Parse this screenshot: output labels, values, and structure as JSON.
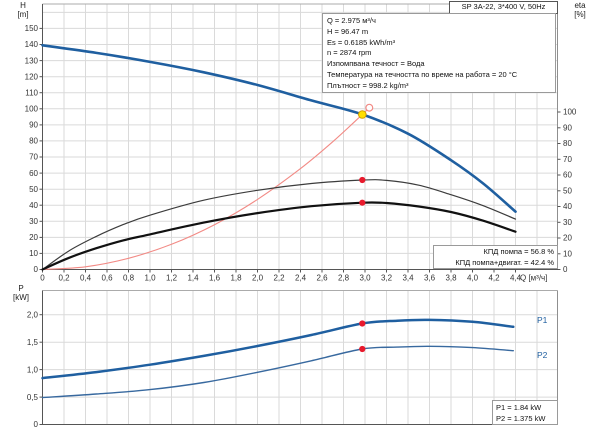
{
  "header": {
    "model_box": "SP 3A-22, 3*400 V, 50Hz"
  },
  "top_chart": {
    "left_axis": {
      "title": "H",
      "unit": "[m]"
    },
    "right_axis": {
      "title": "eta",
      "unit": "[%]"
    },
    "info_lines": [
      "Q = 2.975 м³/ч",
      "H = 96.47 m",
      "Es = 0.6185 kWh/m³",
      "n = 2874 rpm",
      "Изпомпвана течност = Вода",
      "Температура на течността по време на работа = 20 °C",
      "Плътност = 998.2 kg/m³"
    ],
    "efficiency_box": [
      "КПД помпа = 56.8 %",
      "КПД помпа+двигат. = 42.4 %"
    ]
  },
  "bottom_chart": {
    "left_axis": {
      "title": "P",
      "unit": "[kW]"
    },
    "curve_labels": [
      "P1",
      "P2"
    ],
    "value_box": [
      "P1 = 1.84 kW",
      "P2 = 1.375 kW"
    ]
  },
  "chart_data": [
    {
      "id": "head-and-efficiency-chart",
      "type": "line",
      "title": "SP 3A-22, 3*400 V, 50Hz",
      "x_axis": {
        "label": "Q [м³/ч]",
        "min": 0,
        "max": 4.8,
        "tick_values": [
          0,
          0.2,
          0.4,
          0.6,
          0.8,
          1,
          1.2,
          1.4,
          1.6,
          1.8,
          2,
          2.2,
          2.4,
          2.6,
          2.8,
          3,
          3.2,
          3.4,
          3.6,
          3.8,
          4,
          4.2,
          4.4
        ],
        "tick_labels": [
          "0",
          "0,2",
          "0,4",
          "0,6",
          "0,8",
          "1,0",
          "1,2",
          "1,4",
          "1,6",
          "1,8",
          "2,0",
          "2,2",
          "2,4",
          "2,6",
          "2,8",
          "3,0",
          "3,2",
          "3,4",
          "3,6",
          "3,8",
          "4,0",
          "4,2",
          "4,4"
        ]
      },
      "y_axis_left": {
        "label": "H [m]",
        "min": 0,
        "max": 165,
        "tick_values": [
          0,
          10,
          20,
          30,
          40,
          50,
          60,
          70,
          80,
          90,
          100,
          110,
          120,
          130,
          140,
          150
        ],
        "tick_labels": [
          "0",
          "10",
          "20",
          "30",
          "40",
          "50",
          "60",
          "70",
          "80",
          "90",
          "100",
          "110",
          "120",
          "130",
          "140",
          "150"
        ]
      },
      "y_axis_right": {
        "label": "eta [%]",
        "min": 0,
        "max": 105,
        "tick_values": [
          0,
          10,
          20,
          30,
          40,
          50,
          60,
          70,
          80,
          90,
          100
        ],
        "tick_labels": [
          "0",
          "10",
          "20",
          "30",
          "40",
          "50",
          "60",
          "70",
          "80",
          "90",
          "100"
        ]
      },
      "series": [
        {
          "name": "pump-head",
          "yaxis": "left",
          "color": "#1f5fa0",
          "width": 2.6,
          "points": [
            [
              0,
              139.5
            ],
            [
              0.5,
              134.8
            ],
            [
              1,
              129.2
            ],
            [
              1.5,
              122.7
            ],
            [
              2,
              114.8
            ],
            [
              2.5,
              105.2
            ],
            [
              2.975,
              96.5
            ],
            [
              3.4,
              84.5
            ],
            [
              3.8,
              68
            ],
            [
              4.1,
              53.5
            ],
            [
              4.4,
              36
            ]
          ]
        },
        {
          "name": "system-curve",
          "yaxis": "left",
          "color": "#f28a85",
          "width": 1.1,
          "points": [
            [
              0,
              0
            ],
            [
              0.4,
              1.7
            ],
            [
              0.8,
              7
            ],
            [
              1.2,
              15.7
            ],
            [
              1.6,
              27.9
            ],
            [
              2,
              43.6
            ],
            [
              2.4,
              62.8
            ],
            [
              2.7,
              79.5
            ],
            [
              2.975,
              96.47
            ],
            [
              3.04,
              100.7
            ]
          ]
        },
        {
          "name": "efficiency-pump",
          "yaxis": "right",
          "color": "#3c3c3c",
          "width": 1.2,
          "points": [
            [
              0,
              0
            ],
            [
              0.25,
              12
            ],
            [
              0.5,
              21
            ],
            [
              0.75,
              28.5
            ],
            [
              1,
              34.5
            ],
            [
              1.5,
              44
            ],
            [
              2,
              50.3
            ],
            [
              2.5,
              54.6
            ],
            [
              2.975,
              56.8
            ],
            [
              3.2,
              56.6
            ],
            [
              3.5,
              53.5
            ],
            [
              3.8,
              47.5
            ],
            [
              4.1,
              40.5
            ],
            [
              4.4,
              32
            ]
          ]
        },
        {
          "name": "efficiency-pump-motor",
          "yaxis": "right",
          "color": "#111111",
          "width": 2.2,
          "points": [
            [
              0,
              0
            ],
            [
              0.25,
              7.5
            ],
            [
              0.5,
              13.5
            ],
            [
              0.75,
              18.5
            ],
            [
              1,
              22.3
            ],
            [
              1.5,
              29.8
            ],
            [
              2,
              35.8
            ],
            [
              2.5,
              40.2
            ],
            [
              2.975,
              42.4
            ],
            [
              3.2,
              42.2
            ],
            [
              3.5,
              40
            ],
            [
              3.8,
              36.5
            ],
            [
              4.1,
              31
            ],
            [
              4.4,
              24
            ]
          ]
        }
      ],
      "markers": [
        {
          "name": "system-curve-end-marker",
          "x": 3.04,
          "y": 100.7,
          "yaxis": "left",
          "style": "open",
          "color": "#f28a85"
        },
        {
          "name": "duty-point-marker",
          "x": 2.975,
          "y": 96.47,
          "yaxis": "left",
          "style": "filled",
          "fill": "#ffdf00",
          "stroke": "#d29e00",
          "r": 3.8
        },
        {
          "name": "pump-efficiency-point",
          "x": 2.975,
          "y": 56.8,
          "yaxis": "right",
          "style": "filled",
          "fill": "#e8192c"
        },
        {
          "name": "motor-efficiency-point",
          "x": 2.975,
          "y": 42.4,
          "yaxis": "right",
          "style": "filled",
          "fill": "#e8192c"
        }
      ],
      "duty_point": {
        "Q": 2.975,
        "H": 96.47,
        "eta_pump": 56.8,
        "eta_pump_motor": 42.4
      }
    },
    {
      "id": "power-chart",
      "type": "line",
      "x_axis": {
        "label": "",
        "min": 0,
        "max": 4.8
      },
      "y_axis_left": {
        "label": "P [kW]",
        "min": 0,
        "max": 2.42,
        "tick_values": [
          0,
          0.5,
          1,
          1.5,
          2
        ],
        "tick_labels": [
          "0",
          "0,5",
          "1,0",
          "1,5",
          "2,0"
        ]
      },
      "series": [
        {
          "name": "P1",
          "yaxis": "left",
          "color": "#1f5fa0",
          "width": 2.5,
          "points": [
            [
              0,
              0.845
            ],
            [
              0.5,
              0.955
            ],
            [
              1,
              1.09
            ],
            [
              1.5,
              1.25
            ],
            [
              2,
              1.43
            ],
            [
              2.5,
              1.63
            ],
            [
              2.975,
              1.84
            ],
            [
              3.3,
              1.89
            ],
            [
              3.6,
              1.905
            ],
            [
              4,
              1.87
            ],
            [
              4.38,
              1.78
            ]
          ]
        },
        {
          "name": "P2",
          "yaxis": "left",
          "color": "#38699f",
          "width": 1.4,
          "points": [
            [
              0,
              0.49
            ],
            [
              0.5,
              0.555
            ],
            [
              1,
              0.635
            ],
            [
              1.5,
              0.765
            ],
            [
              2,
              0.95
            ],
            [
              2.5,
              1.16
            ],
            [
              2.975,
              1.375
            ],
            [
              3.3,
              1.41
            ],
            [
              3.6,
              1.425
            ],
            [
              4,
              1.4
            ],
            [
              4.38,
              1.345
            ]
          ]
        }
      ],
      "markers": [
        {
          "name": "p1-duty-point",
          "x": 2.975,
          "y": 1.84,
          "yaxis": "left",
          "style": "filled",
          "fill": "#e8192c"
        },
        {
          "name": "p2-duty-point",
          "x": 2.975,
          "y": 1.375,
          "yaxis": "left",
          "style": "filled",
          "fill": "#e8192c"
        }
      ],
      "duty_point": {
        "Q": 2.975,
        "P1": 1.84,
        "P2": 1.375
      }
    }
  ]
}
